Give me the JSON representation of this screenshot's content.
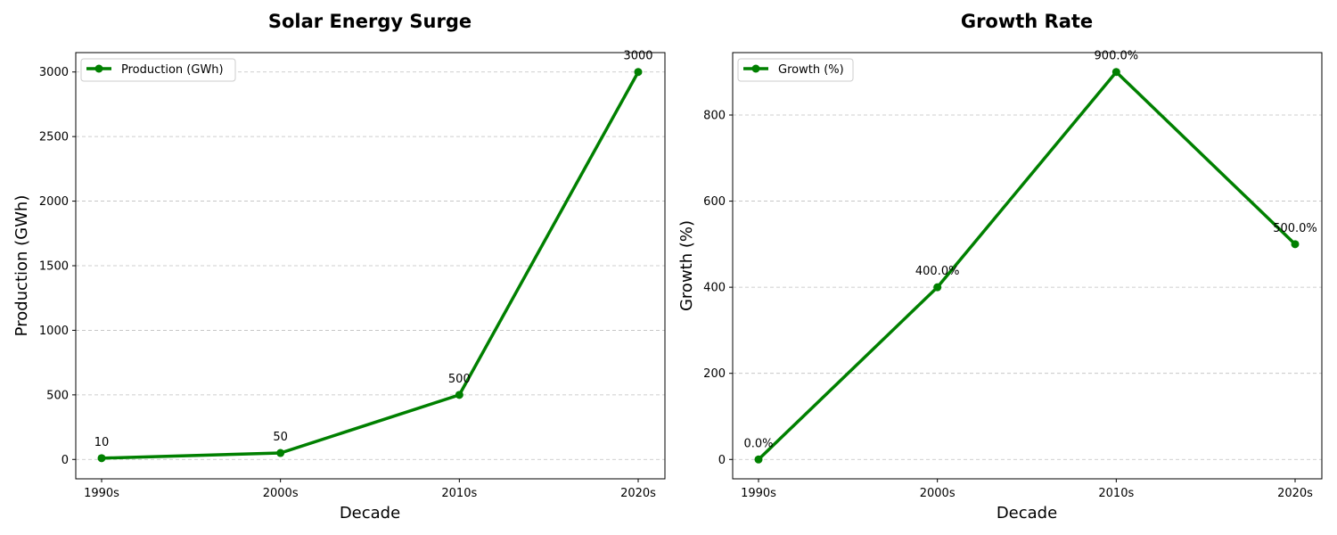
{
  "chart_data": [
    {
      "type": "line",
      "title": "Solar Energy Surge",
      "xlabel": "Decade",
      "ylabel": "Production (GWh)",
      "categories": [
        "1990s",
        "2000s",
        "2010s",
        "2020s"
      ],
      "series": [
        {
          "name": "Production (GWh)",
          "values": [
            10,
            50,
            500,
            3000
          ],
          "color": "#008000"
        }
      ],
      "data_labels": [
        "10",
        "50",
        "500",
        "3000"
      ],
      "ylim": [
        -150,
        3150
      ],
      "yticks": [
        0,
        500,
        1000,
        1500,
        2000,
        2500,
        3000
      ],
      "grid": true,
      "legend_position": "top-left"
    },
    {
      "type": "line",
      "title": "Growth Rate",
      "xlabel": "Decade",
      "ylabel": "Growth (%)",
      "categories": [
        "1990s",
        "2000s",
        "2010s",
        "2020s"
      ],
      "series": [
        {
          "name": "Growth (%)",
          "values": [
            0,
            400,
            900,
            500
          ],
          "color": "#008000"
        }
      ],
      "data_labels": [
        "0.0%",
        "400.0%",
        "900.0%",
        "500.0%"
      ],
      "ylim": [
        -45,
        945
      ],
      "yticks": [
        0,
        200,
        400,
        600,
        800
      ],
      "grid": true,
      "legend_position": "top-left"
    }
  ]
}
